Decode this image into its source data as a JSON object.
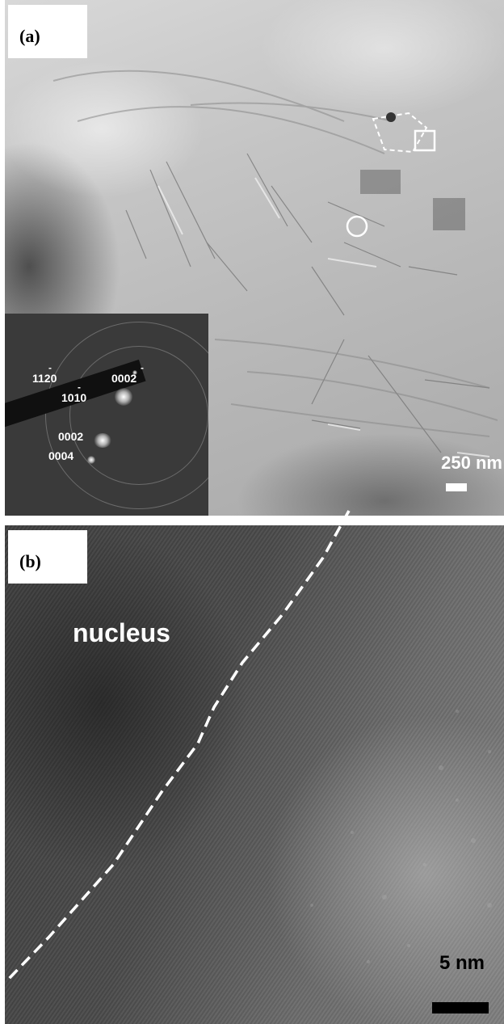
{
  "panel_a": {
    "label": "(a)",
    "scale_bar_label": "250 nm",
    "diffraction_inset": {
      "indices": [
        "1120",
        "1010",
        "0002",
        "0002",
        "0004"
      ]
    }
  },
  "panel_b": {
    "label": "(b)",
    "region_label": "nucleus",
    "scale_bar_label": "5 nm"
  },
  "colors": {
    "annotation": "#ffffff",
    "scale_bar_b": "#000000"
  }
}
